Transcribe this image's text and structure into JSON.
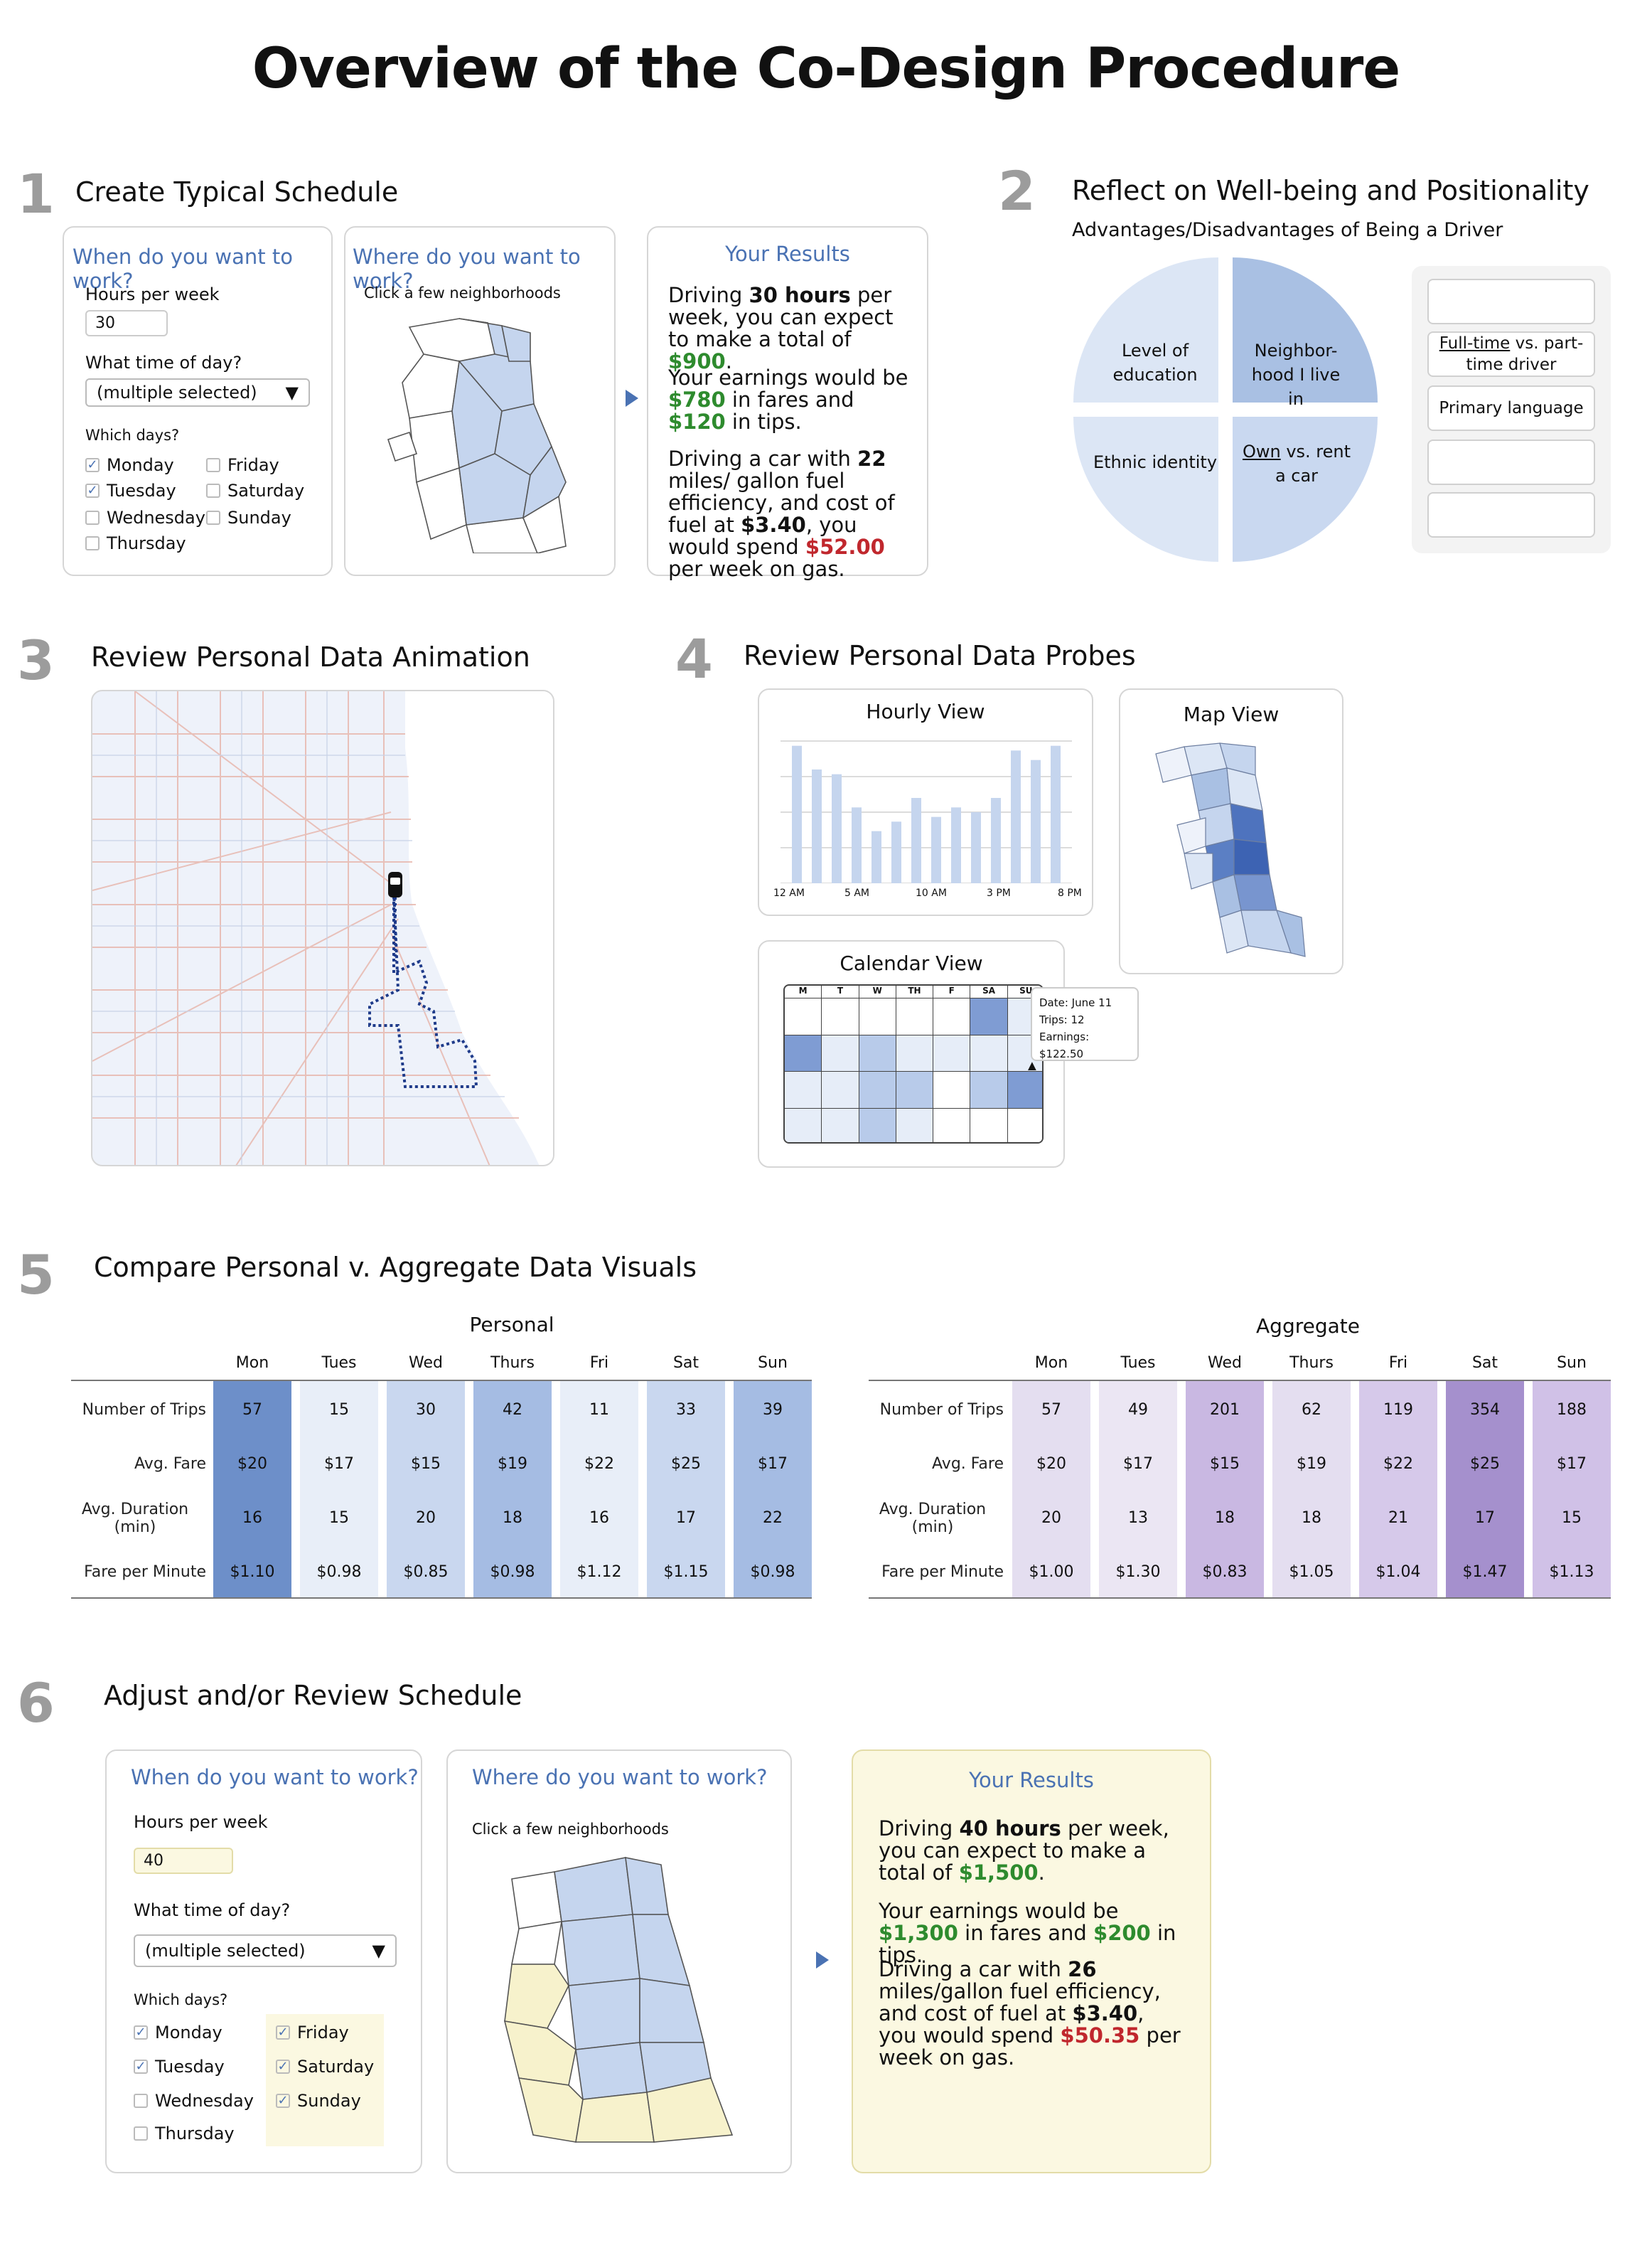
{
  "title": "Overview of the Co-Design Procedure",
  "steps": [
    {
      "num": "1",
      "title": "Create Typical Schedule"
    },
    {
      "num": "2",
      "title": "Reflect on Well-being and Positionality"
    },
    {
      "num": "3",
      "title": "Review Personal Data Animation"
    },
    {
      "num": "4",
      "title": "Review Personal Data Probes"
    },
    {
      "num": "5",
      "title": "Compare Personal v. Aggregate Data Visuals"
    },
    {
      "num": "6",
      "title": "Adjust and/or Review Schedule"
    }
  ],
  "form": {
    "when_title": "When do you want to work?",
    "hours_label": "Hours per week",
    "time_label": "What time of day?",
    "select_value": "(multiple selected)",
    "days_label": "Which days?",
    "where_title": "Where do you want to work?",
    "where_hint": "Click a few neighborhoods",
    "results_title": "Your Results"
  },
  "s1": {
    "hours": "30",
    "days": [
      {
        "name": "Monday",
        "checked": true
      },
      {
        "name": "Tuesday",
        "checked": true
      },
      {
        "name": "Wednesday",
        "checked": false
      },
      {
        "name": "Thursday",
        "checked": false
      },
      {
        "name": "Friday",
        "checked": false
      },
      {
        "name": "Saturday",
        "checked": false
      },
      {
        "name": "Sunday",
        "checked": false
      }
    ],
    "r1a": "Driving ",
    "r1b": "30 hours",
    "r1c": " per week, you can expect to make a total of ",
    "r1d": "$900",
    "r2a": "Your earnings would be ",
    "r2b": "$780",
    "r2c": " in fares and ",
    "r2d": "$120",
    "r2e": " in tips.",
    "r3a": "Driving a car with ",
    "r3b": "22",
    "r3c": " miles/ gallon fuel efficiency, and cost of fuel at ",
    "r3d": "$3.40",
    "r3e": ", you would spend ",
    "r3f": "$52.00",
    "r3g": " per week on gas."
  },
  "s2": {
    "subtitle": "Advantages/Disadvantages of Being a Driver",
    "pie": [
      "Level of education",
      "Neighbor-hood I live in",
      "Ethnic identity",
      "vs. rent a car"
    ],
    "pie_own": "Own",
    "chips": [
      "",
      "Full-time",
      "vs. part-time driver",
      "Primary language",
      "",
      ""
    ],
    "colors": {
      "light": "#dce6f5",
      "mid": "#a9c0e3"
    }
  },
  "s4": {
    "hourly_title": "Hourly View",
    "hourly_ticks": [
      "12 AM",
      "5 AM",
      "10 AM",
      "3 PM",
      "8 PM"
    ],
    "hourly_values": [
      29,
      24,
      23,
      16,
      11,
      13,
      18,
      14,
      16,
      15,
      18,
      28,
      26,
      29
    ],
    "map_title": "Map View",
    "cal_title": "Calendar View",
    "cal_days": [
      "M",
      "T",
      "W",
      "TH",
      "F",
      "SA",
      "SU"
    ],
    "cal_levels": [
      [
        0,
        0,
        0,
        0,
        0,
        3,
        1
      ],
      [
        3,
        1,
        2,
        1,
        1,
        1,
        1
      ],
      [
        1,
        1,
        2,
        2,
        0,
        2,
        3
      ],
      [
        1,
        1,
        2,
        1,
        0,
        0,
        0
      ]
    ],
    "tooltip": [
      "Date: June 11",
      "Trips: 12",
      "Earnings: $122.50"
    ]
  },
  "s5": {
    "row_labels": [
      "Number of Trips",
      "Avg. Fare",
      "Avg. Duration (min)",
      "Fare per Minute"
    ],
    "days": [
      "Mon",
      "Tues",
      "Wed",
      "Thurs",
      "Fri",
      "Sat",
      "Sun"
    ],
    "personal": {
      "title": "Personal",
      "cols": [
        [
          "57",
          "$20",
          "16",
          "$1.10"
        ],
        [
          "15",
          "$17",
          "15",
          "$0.98"
        ],
        [
          "30",
          "$15",
          "20",
          "$0.85"
        ],
        [
          "42",
          "$19",
          "18",
          "$0.98"
        ],
        [
          "11",
          "$22",
          "16",
          "$1.12"
        ],
        [
          "33",
          "$25",
          "17",
          "$1.15"
        ],
        [
          "39",
          "$17",
          "22",
          "$0.98"
        ]
      ],
      "shade": [
        "#6d8fc9",
        "#e8eef8",
        "#c9d7ef",
        "#a5bce3",
        "#e8eef8",
        "#c9d7ef",
        "#a5bce3"
      ]
    },
    "aggregate": {
      "title": "Aggregate",
      "cols": [
        [
          "57",
          "$20",
          "20",
          "$1.00"
        ],
        [
          "49",
          "$17",
          "13",
          "$1.30"
        ],
        [
          "201",
          "$15",
          "18",
          "$0.83"
        ],
        [
          "62",
          "$19",
          "18",
          "$1.05"
        ],
        [
          "119",
          "$22",
          "21",
          "$1.04"
        ],
        [
          "354",
          "$25",
          "17",
          "$1.47"
        ],
        [
          "188",
          "$17",
          "15",
          "$1.13"
        ]
      ],
      "shade": [
        "#e4def0",
        "#ebe6f3",
        "#c9b8e2",
        "#e4def0",
        "#d6c9ea",
        "#a590cd",
        "#d0c1e7"
      ]
    }
  },
  "s6": {
    "hours": "40",
    "days": [
      {
        "name": "Monday",
        "checked": true
      },
      {
        "name": "Tuesday",
        "checked": true
      },
      {
        "name": "Wednesday",
        "checked": false
      },
      {
        "name": "Thursday",
        "checked": false
      },
      {
        "name": "Friday",
        "checked": true
      },
      {
        "name": "Saturday",
        "checked": true
      },
      {
        "name": "Sunday",
        "checked": true
      }
    ],
    "r1a": "Driving ",
    "r1b": "40 hours",
    "r1c": " per week, you can expect to make a total of ",
    "r1d": "$1,500",
    "r2a": "Your earnings would be ",
    "r2b": "$1,300",
    "r2c": " in fares and ",
    "r2d": "$200",
    "r2e": " in tips.",
    "r3a": "Driving a car with ",
    "r3b": "26",
    "r3c": " miles/gallon fuel efficiency, and cost of fuel at ",
    "r3d": "$3.40",
    "r3e": ", you would spend ",
    "r3f": "$50.35",
    "r3g": " per week on gas.",
    "highlight": "#fbf8e1"
  }
}
